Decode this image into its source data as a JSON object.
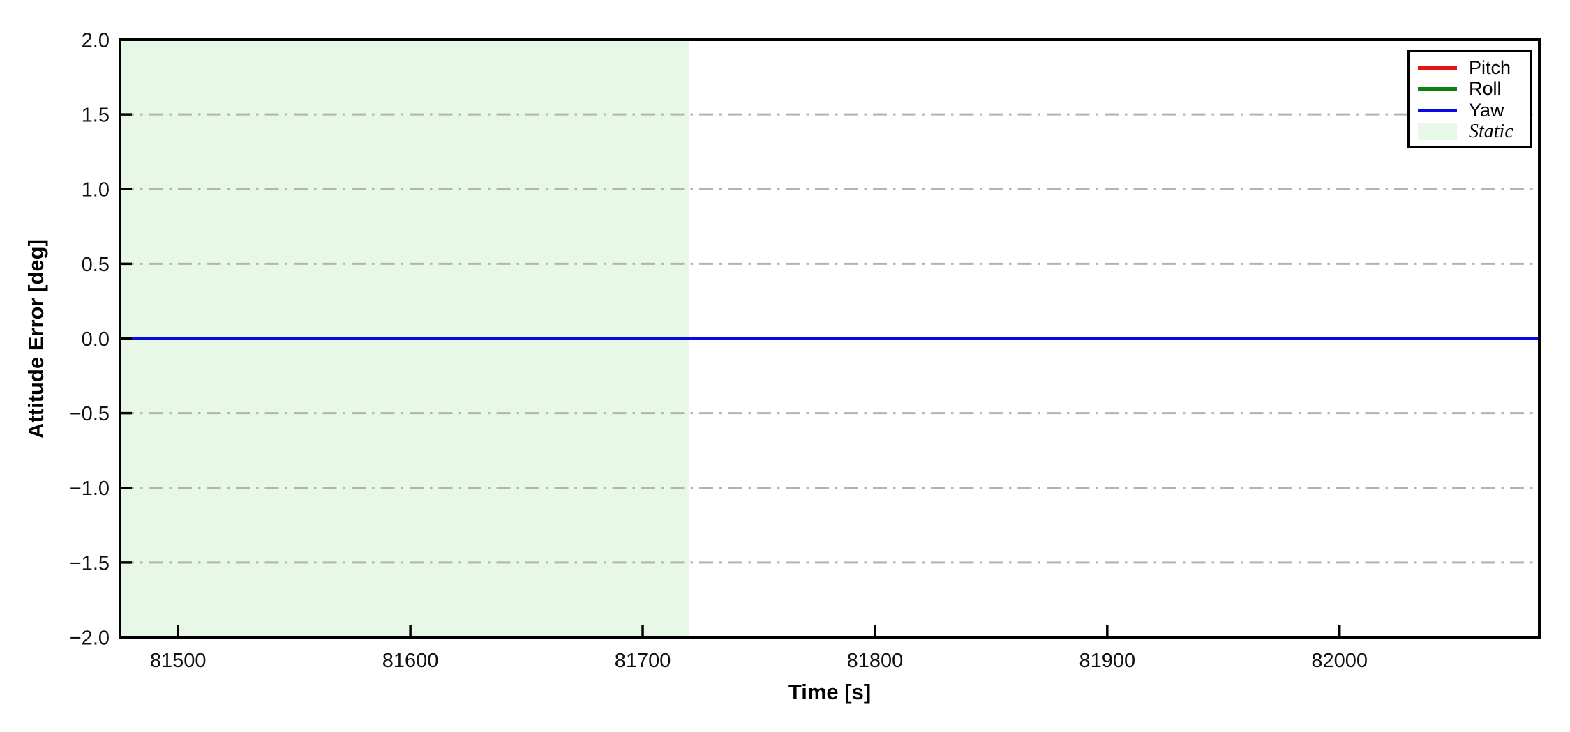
{
  "figure": {
    "background": "#ffffff",
    "border_color": "#000000"
  },
  "chart_data": {
    "type": "line",
    "title": "",
    "xlabel": "Time [s]",
    "ylabel": "Attitude Error [deg]",
    "xlim": [
      81475,
      82086
    ],
    "ylim": [
      -2.0,
      2.0
    ],
    "xticks": {
      "values": [
        81500,
        81600,
        81700,
        81800,
        81900,
        82000
      ],
      "labels": [
        "81500",
        "81600",
        "81700",
        "81800",
        "81900",
        "82000"
      ]
    },
    "yticks": {
      "values": [
        2.0,
        1.5,
        1.0,
        0.5,
        0.0,
        -0.5,
        -1.0,
        -1.5,
        -2.0
      ],
      "labels": [
        "2.0",
        "1.5",
        "1.0",
        "0.5",
        "0.0",
        "−0.5",
        "−1.0",
        "−1.5",
        "−2.0"
      ]
    },
    "grid": {
      "visible": true,
      "axis": "y",
      "style": "dash-dot",
      "color": "#b3b3b3"
    },
    "series": [
      {
        "name": "Pitch",
        "color": "#e51414",
        "x": [
          81475,
          82086
        ],
        "y": [
          0.0,
          0.0
        ]
      },
      {
        "name": "Roll",
        "color": "#0e800e",
        "x": [
          81475,
          82086
        ],
        "y": [
          0.0,
          0.0
        ]
      },
      {
        "name": "Yaw",
        "color": "#0a0ae0",
        "x": [
          81475,
          82086
        ],
        "y": [
          0.0,
          0.0
        ]
      }
    ],
    "regions": [
      {
        "label": "Static",
        "x0": 81475,
        "x1": 81720,
        "color": "#e7f8e7"
      }
    ],
    "legend": {
      "position": "upper right",
      "entries": [
        {
          "label": "Pitch",
          "type": "line",
          "color": "#e51414",
          "italic": false
        },
        {
          "label": "Roll",
          "type": "line",
          "color": "#0e800e",
          "italic": false
        },
        {
          "label": "Yaw",
          "type": "line",
          "color": "#0a0ae0",
          "italic": false
        },
        {
          "label": "Static",
          "type": "patch",
          "color": "#e7f8e7",
          "italic": true
        }
      ]
    }
  }
}
